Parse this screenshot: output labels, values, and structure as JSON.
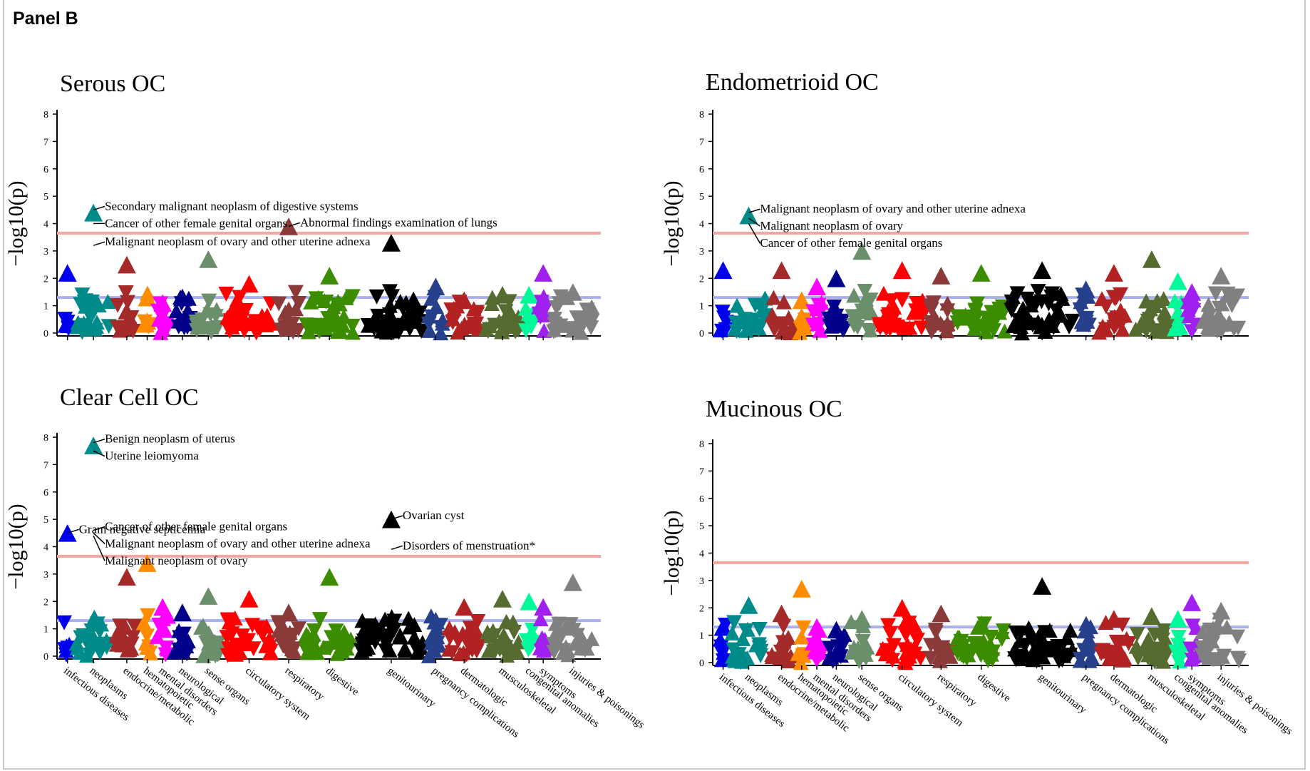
{
  "panel_label": "Panel B",
  "colors": {
    "threshold_bonferroni": "#f4a6a3",
    "threshold_nominal": "#aab0ee",
    "infectious diseases": "#0000ee",
    "neoplasms": "#008b8b",
    "endocrine/metabolic": "#a52a2a",
    "hematopoietic": "#ff8c00",
    "mental disorders": "#ff00ff",
    "neurological": "#00008b",
    "sense organs": "#6b8e6b",
    "circulatory system": "#ff0000",
    "respiratory": "#8b3a3a",
    "digestive": "#3c8c00",
    "genitourinary": "#000000",
    "pregnancy complications": "#27408b",
    "dermatologic": "#b22222",
    "musculoskeletal": "#556b2f",
    "congenital anomalies": "#00fa9a",
    "symptoms": "#a020f0",
    "injuries & poisonings": "#808080"
  },
  "chart_data": [
    {
      "type": "scatter",
      "title": "Serous OC",
      "ylabel": "−log10(p)",
      "ylim": [
        0,
        8
      ],
      "yticks": [
        "0",
        "1",
        "2",
        "3",
        "4",
        "5",
        "6",
        "7",
        "8"
      ],
      "categories": [
        "infectious diseases",
        "neoplasms",
        "endocrine/metabolic",
        "hematopoietic",
        "mental disorders",
        "neurological",
        "sense organs",
        "circulatory system",
        "respiratory",
        "digestive",
        "genitourinary",
        "pregnancy complications",
        "dermatologic",
        "musculoskeletal",
        "congenital anomalies",
        "symptoms",
        "injuries & poisonings"
      ],
      "show_xlabels": false,
      "thresholds": [
        3.65,
        1.3
      ],
      "peaks": [
        {
          "category": "infectious diseases",
          "value": 2.2
        },
        {
          "category": "neoplasms",
          "value": 4.4
        },
        {
          "category": "endocrine/metabolic",
          "value": 2.5
        },
        {
          "category": "hematopoietic",
          "value": 1.3
        },
        {
          "category": "mental disorders",
          "value": 1.1
        },
        {
          "category": "neurological",
          "value": 1.3
        },
        {
          "category": "sense organs",
          "value": 2.7
        },
        {
          "category": "circulatory system",
          "value": 1.8
        },
        {
          "category": "respiratory",
          "value": 3.9
        },
        {
          "category": "digestive",
          "value": 2.1
        },
        {
          "category": "genitourinary",
          "value": 3.3
        },
        {
          "category": "pregnancy complications",
          "value": 1.7
        },
        {
          "category": "dermatologic",
          "value": 1.2
        },
        {
          "category": "musculoskeletal",
          "value": 1.4
        },
        {
          "category": "congenital anomalies",
          "value": 1.4
        },
        {
          "category": "symptoms",
          "value": 2.2
        },
        {
          "category": "injuries & poisonings",
          "value": 1.5
        }
      ],
      "annotations": [
        {
          "text": "Secondary malignant neoplasm of digestive systems",
          "category": "neoplasms",
          "value": 4.5
        },
        {
          "text": "Cancer of other female genital organs",
          "category": "neoplasms",
          "value": 4.0
        },
        {
          "text": "Malignant neoplasm of ovary and other uterine adnexa",
          "category": "neoplasms",
          "value": 3.2
        },
        {
          "text": "Abnormal findings examination of lungs",
          "category": "respiratory",
          "value": 3.9
        }
      ]
    },
    {
      "type": "scatter",
      "title": "Endometrioid OC",
      "ylabel": "−log10(p)",
      "ylim": [
        0,
        8
      ],
      "yticks": [
        "0",
        "1",
        "2",
        "3",
        "4",
        "5",
        "6",
        "7",
        "8"
      ],
      "categories": [
        "infectious diseases",
        "neoplasms",
        "endocrine/metabolic",
        "hematopoietic",
        "mental disorders",
        "neurological",
        "sense organs",
        "circulatory system",
        "respiratory",
        "digestive",
        "genitourinary",
        "pregnancy complications",
        "dermatologic",
        "musculoskeletal",
        "congenital anomalies",
        "symptoms",
        "injuries & poisonings"
      ],
      "show_xlabels": false,
      "thresholds": [
        3.65,
        1.3
      ],
      "peaks": [
        {
          "category": "infectious diseases",
          "value": 2.3
        },
        {
          "category": "neoplasms",
          "value": 4.3
        },
        {
          "category": "endocrine/metabolic",
          "value": 2.3
        },
        {
          "category": "hematopoietic",
          "value": 1.2
        },
        {
          "category": "mental disorders",
          "value": 1.7
        },
        {
          "category": "neurological",
          "value": 2.0
        },
        {
          "category": "sense organs",
          "value": 3.0
        },
        {
          "category": "circulatory system",
          "value": 2.3
        },
        {
          "category": "respiratory",
          "value": 2.1
        },
        {
          "category": "digestive",
          "value": 2.2
        },
        {
          "category": "genitourinary",
          "value": 2.3
        },
        {
          "category": "pregnancy complications",
          "value": 1.6
        },
        {
          "category": "dermatologic",
          "value": 2.2
        },
        {
          "category": "musculoskeletal",
          "value": 2.7
        },
        {
          "category": "congenital anomalies",
          "value": 1.9
        },
        {
          "category": "symptoms",
          "value": 1.5
        },
        {
          "category": "injuries & poisonings",
          "value": 2.1
        }
      ],
      "annotations": [
        {
          "text": "Malignant neoplasm of ovary and other uterine adnexa",
          "category": "neoplasms",
          "value": 4.4
        },
        {
          "text": "Malignant neoplasm of ovary",
          "category": "neoplasms",
          "value": 4.2
        },
        {
          "text": "Cancer of other female genital organs",
          "category": "neoplasms",
          "value": 4.0
        }
      ]
    },
    {
      "type": "scatter",
      "title": "Clear Cell OC",
      "ylabel": "−log10(p)",
      "ylim": [
        0,
        8
      ],
      "yticks": [
        "0",
        "1",
        "2",
        "3",
        "4",
        "5",
        "6",
        "7",
        "8"
      ],
      "categories": [
        "infectious diseases",
        "neoplasms",
        "endocrine/metabolic",
        "hematopoietic",
        "mental disorders",
        "neurological",
        "sense organs",
        "circulatory system",
        "respiratory",
        "digestive",
        "genitourinary",
        "pregnancy complications",
        "dermatologic",
        "musculoskeletal",
        "congenital anomalies",
        "symptoms",
        "injuries & poisonings"
      ],
      "show_xlabels": true,
      "thresholds": [
        3.65,
        1.3
      ],
      "peaks": [
        {
          "category": "infectious diseases",
          "value": 4.5
        },
        {
          "category": "neoplasms",
          "value": 7.7
        },
        {
          "category": "endocrine/metabolic",
          "value": 2.9
        },
        {
          "category": "hematopoietic",
          "value": 3.4
        },
        {
          "category": "mental disorders",
          "value": 1.8
        },
        {
          "category": "neurological",
          "value": 1.6
        },
        {
          "category": "sense organs",
          "value": 2.2
        },
        {
          "category": "circulatory system",
          "value": 2.1
        },
        {
          "category": "respiratory",
          "value": 1.6
        },
        {
          "category": "digestive",
          "value": 2.9
        },
        {
          "category": "genitourinary",
          "value": 5.0
        },
        {
          "category": "pregnancy complications",
          "value": 1.3
        },
        {
          "category": "dermatologic",
          "value": 1.8
        },
        {
          "category": "musculoskeletal",
          "value": 2.1
        },
        {
          "category": "congenital anomalies",
          "value": 2.0
        },
        {
          "category": "symptoms",
          "value": 1.8
        },
        {
          "category": "injuries & poisonings",
          "value": 2.7
        }
      ],
      "annotations": [
        {
          "text": "Benign neoplasm of uterus",
          "category": "neoplasms",
          "value": 7.8
        },
        {
          "text": "Uterine leiomyoma",
          "category": "neoplasms",
          "value": 7.5
        },
        {
          "text": "Gram negative septicemia",
          "category": "infectious diseases",
          "value": 4.5
        },
        {
          "text": "Cancer of other female genital organs",
          "category": "neoplasms",
          "value": 4.6
        },
        {
          "text": "Malignant neoplasm of ovary and other uterine adnexa",
          "category": "neoplasms",
          "value": 4.5
        },
        {
          "text": "Malignant neoplasm of ovary",
          "category": "neoplasms",
          "value": 4.4
        },
        {
          "text": "Ovarian cyst",
          "category": "genitourinary",
          "value": 5.0
        },
        {
          "text": "Disorders of menstruation*",
          "category": "genitourinary",
          "value": 3.9
        }
      ]
    },
    {
      "type": "scatter",
      "title": "Mucinous OC",
      "ylabel": "−log10(p)",
      "ylim": [
        0,
        8
      ],
      "yticks": [
        "0",
        "1",
        "2",
        "3",
        "4",
        "5",
        "6",
        "7",
        "8"
      ],
      "categories": [
        "infectious diseases",
        "neoplasms",
        "endocrine/metabolic",
        "hematopoietic",
        "mental disorders",
        "neurological",
        "sense organs",
        "circulatory system",
        "respiratory",
        "digestive",
        "genitourinary",
        "pregnancy complications",
        "dermatologic",
        "musculoskeletal",
        "congenital anomalies",
        "symptoms",
        "injuries & poisonings"
      ],
      "show_xlabels": true,
      "thresholds": [
        3.65,
        1.3
      ],
      "peaks": [
        {
          "category": "infectious diseases",
          "value": 1.3
        },
        {
          "category": "neoplasms",
          "value": 2.1
        },
        {
          "category": "endocrine/metabolic",
          "value": 1.8
        },
        {
          "category": "hematopoietic",
          "value": 2.7
        },
        {
          "category": "mental disorders",
          "value": 1.3
        },
        {
          "category": "neurological",
          "value": 1.2
        },
        {
          "category": "sense organs",
          "value": 1.6
        },
        {
          "category": "circulatory system",
          "value": 2.0
        },
        {
          "category": "respiratory",
          "value": 1.8
        },
        {
          "category": "digestive",
          "value": 1.4
        },
        {
          "category": "genitourinary",
          "value": 2.8
        },
        {
          "category": "pregnancy complications",
          "value": 1.2
        },
        {
          "category": "dermatologic",
          "value": 1.6
        },
        {
          "category": "musculoskeletal",
          "value": 1.7
        },
        {
          "category": "congenital anomalies",
          "value": 1.6
        },
        {
          "category": "symptoms",
          "value": 2.2
        },
        {
          "category": "injuries & poisonings",
          "value": 1.9
        }
      ],
      "annotations": []
    }
  ]
}
